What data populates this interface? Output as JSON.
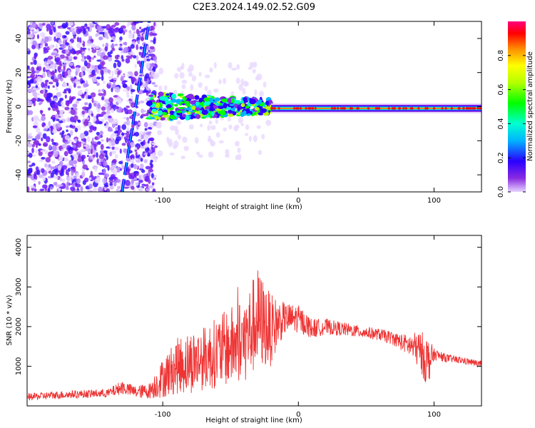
{
  "title": "C2E3.2024.149.02.52.G09",
  "chart_data": [
    {
      "type": "heatmap",
      "xlabel": "Height of straight line (km)",
      "ylabel": "Frequency (Hz)",
      "xlim": [
        -200,
        135
      ],
      "ylim": [
        -50,
        50
      ],
      "xticks": [
        -100,
        0,
        100
      ],
      "yticks": [
        -40,
        -20,
        0,
        20,
        40
      ],
      "colorbar": {
        "label": "Normalized spectral amplitude",
        "range": [
          0,
          1
        ],
        "ticks": [
          0.0,
          0.2,
          0.4,
          0.6,
          0.8
        ],
        "tick_labels": [
          "0.0",
          "0.2",
          "0.4",
          "0.6",
          "0.8"
        ]
      },
      "features": {
        "noise_region_x": [
          -200,
          -105
        ],
        "broadband_region_x": [
          -110,
          -20
        ],
        "narrow_line_region_x": [
          -20,
          135
        ],
        "line_frequency_hz": -1,
        "diagonal_track": {
          "x": [
            -130,
            -110
          ],
          "y": [
            -50,
            50
          ]
        }
      }
    },
    {
      "type": "line",
      "xlabel": "Height of straight line (km)",
      "ylabel": "SNR (10 * v/v)",
      "xlim": [
        -200,
        135
      ],
      "ylim": [
        0,
        4300
      ],
      "xticks": [
        -100,
        0,
        100
      ],
      "yticks": [
        1000,
        2000,
        3000,
        4000
      ],
      "series": [
        {
          "color": "#ee3333",
          "x": [
            -200,
            -180,
            -160,
            -140,
            -130,
            -120,
            -110,
            -100,
            -90,
            -80,
            -70,
            -60,
            -50,
            -40,
            -30,
            -20,
            -15,
            -10,
            0,
            10,
            20,
            30,
            40,
            50,
            60,
            70,
            80,
            90,
            95,
            100,
            110,
            120,
            135
          ],
          "y": [
            220,
            270,
            300,
            320,
            470,
            350,
            380,
            700,
            1000,
            1100,
            1200,
            1350,
            1500,
            1650,
            2200,
            1900,
            2100,
            2200,
            2200,
            1950,
            2000,
            1950,
            1900,
            1850,
            1800,
            1700,
            1550,
            1400,
            1100,
            1300,
            1200,
            1150,
            1050
          ],
          "noise": [
            90,
            100,
            100,
            110,
            180,
            150,
            200,
            500,
            700,
            800,
            800,
            900,
            1000,
            1100,
            1300,
            900,
            600,
            400,
            350,
            250,
            200,
            180,
            160,
            150,
            150,
            170,
            250,
            500,
            700,
            150,
            100,
            90,
            80
          ]
        }
      ]
    }
  ]
}
